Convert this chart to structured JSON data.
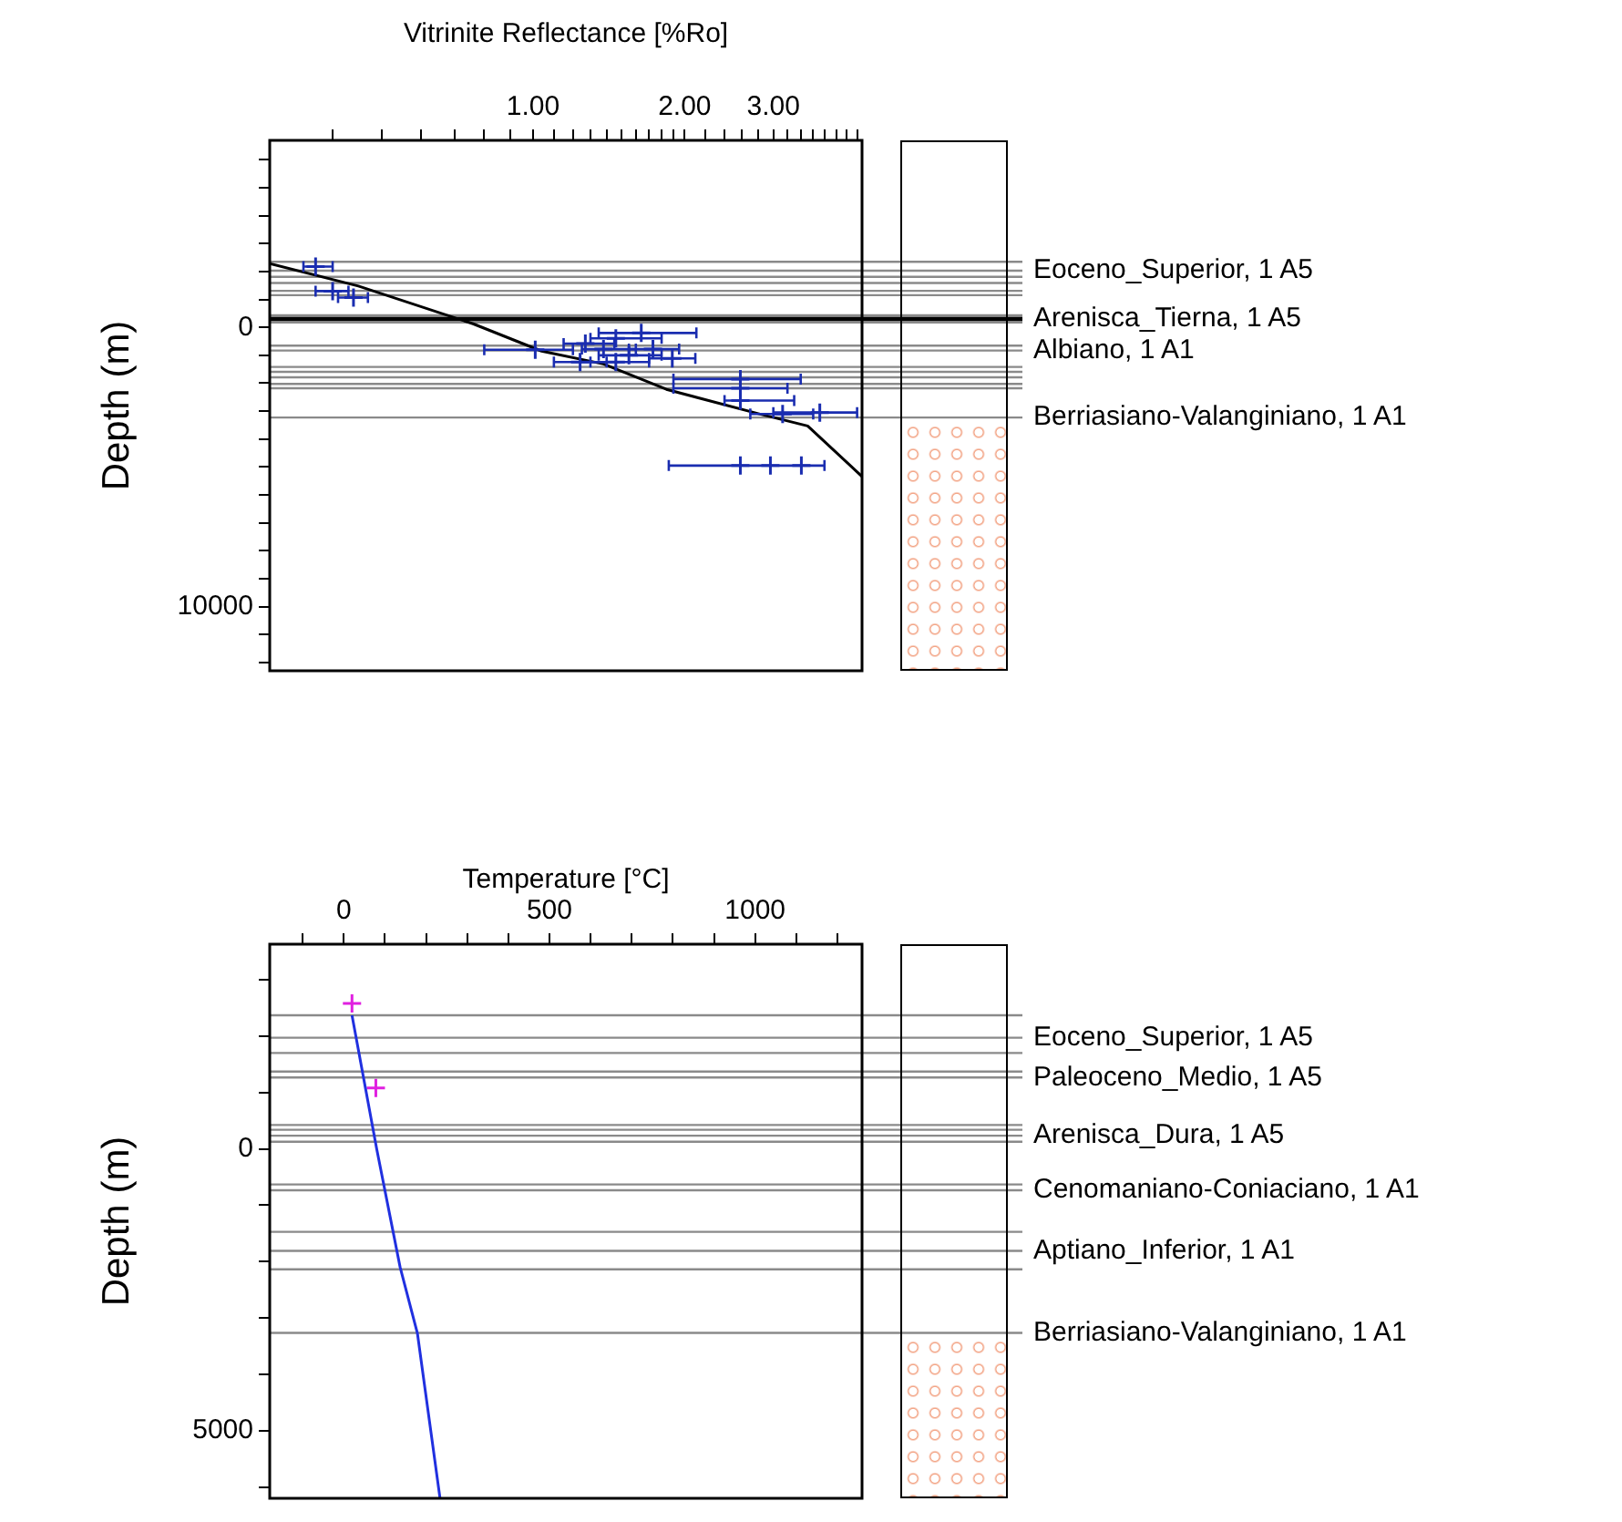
{
  "chart_data": [
    {
      "type": "scatter",
      "xlabel": "Vitrinite Reflectance [%Ro]",
      "ylabel": "Depth (m)",
      "log": "x",
      "xlim": [
        0.3,
        4.5
      ],
      "ylim": [
        12300,
        -6700
      ],
      "xticks": [
        {
          "value": 0.4,
          "label": null
        },
        {
          "value": 0.5,
          "label": null
        },
        {
          "value": 0.6,
          "label": null
        },
        {
          "value": 0.7,
          "label": null
        },
        {
          "value": 0.8,
          "label": null
        },
        {
          "value": 0.9,
          "label": null
        },
        {
          "value": 1,
          "label": "1.00"
        },
        {
          "value": 1.1,
          "label": null
        },
        {
          "value": 1.2,
          "label": null
        },
        {
          "value": 1.3,
          "label": null
        },
        {
          "value": 1.4,
          "label": null
        },
        {
          "value": 1.5,
          "label": null
        },
        {
          "value": 1.6,
          "label": null
        },
        {
          "value": 1.7,
          "label": null
        },
        {
          "value": 1.8,
          "label": null
        },
        {
          "value": 1.9,
          "label": null
        },
        {
          "value": 2,
          "label": "2.00"
        },
        {
          "value": 2.2,
          "label": null
        },
        {
          "value": 2.4,
          "label": null
        },
        {
          "value": 2.6,
          "label": null
        },
        {
          "value": 2.8,
          "label": null
        },
        {
          "value": 3,
          "label": "3.00"
        },
        {
          "value": 3.2,
          "label": null
        },
        {
          "value": 3.4,
          "label": null
        },
        {
          "value": 3.6,
          "label": null
        },
        {
          "value": 3.8,
          "label": null
        },
        {
          "value": 4,
          "label": null
        },
        {
          "value": 4.2,
          "label": null
        },
        {
          "value": 4.4,
          "label": null
        }
      ],
      "yticks": [
        {
          "value": -6000,
          "label": null
        },
        {
          "value": -5000,
          "label": null
        },
        {
          "value": -4000,
          "label": null
        },
        {
          "value": -3000,
          "label": null
        },
        {
          "value": -2000,
          "label": null
        },
        {
          "value": -1000,
          "label": null
        },
        0,
        {
          "value": 1000,
          "label": null
        },
        {
          "value": 2000,
          "label": null
        },
        {
          "value": 3000,
          "label": null
        },
        {
          "value": 4000,
          "label": null
        },
        {
          "value": 5000,
          "label": null
        },
        {
          "value": 6000,
          "label": null
        },
        {
          "value": 7000,
          "label": null
        },
        {
          "value": 8000,
          "label": null
        },
        {
          "value": 9000,
          "label": null
        },
        10000,
        {
          "value": 11000,
          "label": null
        },
        {
          "value": 12000,
          "label": null
        }
      ],
      "series": [
        {
          "type": "scatter",
          "color": "#1a2db0",
          "marker": "cross",
          "x": [
            0.37,
            0.4,
            0.44,
            1.64,
            1.46,
            1.27,
            1.38,
            1.73,
            1.01,
            1.55,
            1.46,
            1.24,
            1.89,
            2.58,
            2.58,
            2.58,
            3.71,
            3.13,
            2.58,
            2.96,
            3.41
          ],
          "values": [
            -2180,
            -1300,
            -1070,
            200,
            390,
            580,
            780,
            780,
            800,
            1000,
            1240,
            1240,
            1110,
            1850,
            2180,
            2620,
            3050,
            3100,
            4950,
            4950,
            4950
          ],
          "xerrors": [
            [
              0.35,
              0.4
            ],
            [
              0.37,
              0.43
            ],
            [
              0.41,
              0.47
            ],
            [
              1.35,
              2.11
            ],
            [
              1.3,
              1.8
            ],
            [
              1.15,
              1.45
            ],
            [
              1.25,
              1.6
            ],
            [
              1.55,
              1.95
            ],
            [
              0.8,
              1.2
            ],
            [
              1.35,
              1.8
            ],
            [
              1.3,
              1.7
            ],
            [
              1.1,
              1.4
            ],
            [
              1.7,
              2.1
            ],
            [
              1.9,
              3.4
            ],
            [
              1.9,
              3.2
            ],
            [
              2.4,
              3.3
            ],
            [
              3.0,
              4.4
            ],
            [
              2.7,
              3.6
            ],
            null,
            [
              1.86,
              3.79
            ],
            null
          ]
        },
        {
          "type": "line",
          "color": "#000000",
          "marker": "none",
          "x": [
            0.3,
            0.45,
            0.76,
            1.04,
            1.38,
            1.84,
            2.8,
            3.51,
            4.5
          ],
          "values": [
            -2290,
            -1480,
            -130,
            850,
            1310,
            2220,
            3090,
            3530,
            5340
          ]
        }
      ],
      "ref_lines": [
        {
          "axis": "y",
          "value": -2350,
          "label": null
        },
        {
          "axis": "y",
          "value": -2030,
          "label": "Eoceno_Superior, 1 A5"
        },
        {
          "axis": "y",
          "value": -1810,
          "label": null
        },
        {
          "axis": "y",
          "value": -1590,
          "label": null
        },
        {
          "axis": "y",
          "value": -1310,
          "label": null
        },
        {
          "axis": "y",
          "value": -1155,
          "label": null
        },
        {
          "axis": "y",
          "value": -436,
          "label": null
        },
        {
          "axis": "y",
          "value": -305,
          "label": "Arenisca_Tierna, 1 A5",
          "color": "#000000"
        },
        {
          "axis": "y",
          "value": -174,
          "label": null
        },
        {
          "axis": "y",
          "value": 654,
          "label": null
        },
        {
          "axis": "y",
          "value": 828,
          "label": "Albiano, 1 A1"
        },
        {
          "axis": "y",
          "value": 1417,
          "label": null
        },
        {
          "axis": "y",
          "value": 1591,
          "label": null
        },
        {
          "axis": "y",
          "value": 1787,
          "label": null
        },
        {
          "axis": "y",
          "value": 2027,
          "label": null
        },
        {
          "axis": "y",
          "value": 2180,
          "label": null
        },
        {
          "axis": "y",
          "value": 3227,
          "label": "Berriasiano-Valanginiano, 1 A1"
        }
      ]
    },
    {
      "type": "scatter",
      "xlabel": "Temperature [°C]",
      "ylabel": "Depth (m)",
      "xlim": [
        -180,
        1260
      ],
      "ylim": [
        6200,
        -3630
      ],
      "xticks": [
        {
          "value": -100,
          "label": null
        },
        0,
        {
          "value": 100,
          "label": null
        },
        {
          "value": 200,
          "label": null
        },
        {
          "value": 300,
          "label": null
        },
        {
          "value": 400,
          "label": null
        },
        500,
        {
          "value": 600,
          "label": null
        },
        {
          "value": 700,
          "label": null
        },
        {
          "value": 800,
          "label": null
        },
        {
          "value": 900,
          "label": null
        },
        1000,
        {
          "value": 1100,
          "label": null
        },
        {
          "value": 1200,
          "label": null
        }
      ],
      "yticks": [
        {
          "value": -3000,
          "label": null
        },
        {
          "value": -2000,
          "label": null
        },
        {
          "value": -1000,
          "label": null
        },
        0,
        {
          "value": 1000,
          "label": null
        },
        {
          "value": 2000,
          "label": null
        },
        {
          "value": 3000,
          "label": null
        },
        {
          "value": 4000,
          "label": null
        },
        5000,
        {
          "value": 6000,
          "label": null
        }
      ],
      "series": [
        {
          "type": "line",
          "color": "#2030e0",
          "marker": "none",
          "x": [
            20,
            80,
            137,
            179,
            234
          ],
          "values": [
            -2370,
            0,
            2100,
            3270,
            6200
          ]
        },
        {
          "type": "scatter",
          "color": "#e020e0",
          "marker": "cross",
          "x": [
            20,
            78
          ],
          "values": [
            -2580,
            -1080
          ]
        }
      ],
      "ref_lines": [
        {
          "axis": "y",
          "value": -2370,
          "label": null
        },
        {
          "axis": "y",
          "value": -1970,
          "label": "Eoceno_Superior, 1 A5"
        },
        {
          "axis": "y",
          "value": -1700,
          "label": null
        },
        {
          "axis": "y",
          "value": -1370,
          "label": null
        },
        {
          "axis": "y",
          "value": -1265,
          "label": "Paleoceno_Medio, 1 A5"
        },
        {
          "axis": "y",
          "value": -423,
          "label": null
        },
        {
          "axis": "y",
          "value": -338,
          "label": null
        },
        {
          "axis": "y",
          "value": -232,
          "label": "Arenisca_Dura, 1 A5"
        },
        {
          "axis": "y",
          "value": -126,
          "label": null
        },
        {
          "axis": "y",
          "value": 632,
          "label": null
        },
        {
          "axis": "y",
          "value": 736,
          "label": "Cenomaniano-Coniaciano, 1 A1"
        },
        {
          "axis": "y",
          "value": 1473,
          "label": null
        },
        {
          "axis": "y",
          "value": 1811,
          "label": "Aptiano_Inferior, 1 A1"
        },
        {
          "axis": "y",
          "value": 2137,
          "label": null
        },
        {
          "axis": "y",
          "value": 3265,
          "label": "Berriasiano-Valanginiano, 1 A1"
        }
      ]
    }
  ]
}
